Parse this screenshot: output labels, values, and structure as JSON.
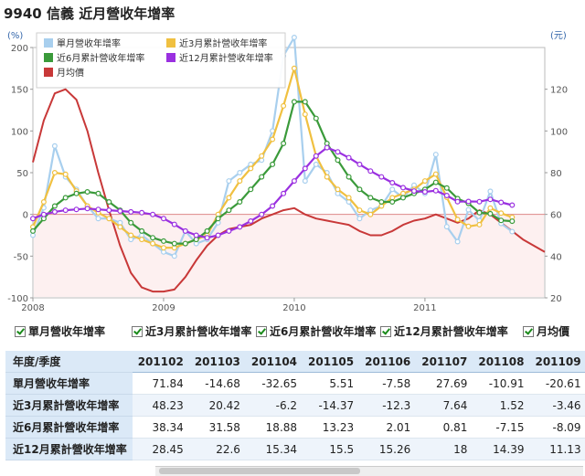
{
  "title": "9940 信義 近月營收年增率",
  "chart_data": {
    "type": "line",
    "left_axis": {
      "unit": "(%)",
      "ticks": [
        "200",
        "150",
        "100",
        "50",
        "0",
        "-50",
        "-100"
      ],
      "ylim": [
        -100,
        200
      ]
    },
    "right_axis": {
      "unit": "(元)",
      "ticks": [
        "120",
        "100",
        "80",
        "60",
        "40",
        "20"
      ],
      "ylim": [
        20,
        140
      ]
    },
    "x_axis": {
      "labels": [
        "2008",
        "2009",
        "2010",
        "2011"
      ],
      "xlim": [
        2008.0,
        2011.917
      ]
    },
    "grid": false,
    "legend_position": "top-left",
    "series": [
      {
        "name": "單月營收年增率",
        "color": "#a8cfee",
        "axis": "left",
        "points": [
          [
            2008.0,
            -25
          ],
          [
            2008.083,
            8
          ],
          [
            2008.167,
            82
          ],
          [
            2008.25,
            45
          ],
          [
            2008.333,
            30
          ],
          [
            2008.417,
            10
          ],
          [
            2008.5,
            -5
          ],
          [
            2008.583,
            -5
          ],
          [
            2008.667,
            -10
          ],
          [
            2008.75,
            -30
          ],
          [
            2008.833,
            -25
          ],
          [
            2008.917,
            -35
          ],
          [
            2009.0,
            -45
          ],
          [
            2009.083,
            -50
          ],
          [
            2009.167,
            -20
          ],
          [
            2009.25,
            -35
          ],
          [
            2009.333,
            -30
          ],
          [
            2009.417,
            -10
          ],
          [
            2009.5,
            40
          ],
          [
            2009.583,
            50
          ],
          [
            2009.667,
            60
          ],
          [
            2009.75,
            65
          ],
          [
            2009.833,
            100
          ],
          [
            2009.917,
            190
          ],
          [
            2010.0,
            212
          ],
          [
            2010.083,
            40
          ],
          [
            2010.167,
            60
          ],
          [
            2010.25,
            50
          ],
          [
            2010.333,
            25
          ],
          [
            2010.417,
            15
          ],
          [
            2010.5,
            -5
          ],
          [
            2010.583,
            5
          ],
          [
            2010.667,
            10
          ],
          [
            2010.75,
            30
          ],
          [
            2010.833,
            20
          ],
          [
            2010.917,
            35
          ],
          [
            2011.0,
            25
          ],
          [
            2011.083,
            71.84
          ],
          [
            2011.167,
            -14.68
          ],
          [
            2011.25,
            -32.65
          ],
          [
            2011.333,
            5.51
          ],
          [
            2011.417,
            -7.58
          ],
          [
            2011.5,
            27.69
          ],
          [
            2011.583,
            -10.91
          ],
          [
            2011.667,
            -20.61
          ]
        ]
      },
      {
        "name": "近3月累計營收年增率",
        "color": "#f0c040",
        "axis": "left",
        "points": [
          [
            2008.0,
            -15
          ],
          [
            2008.083,
            15
          ],
          [
            2008.167,
            50
          ],
          [
            2008.25,
            48
          ],
          [
            2008.333,
            28
          ],
          [
            2008.417,
            10
          ],
          [
            2008.5,
            2
          ],
          [
            2008.583,
            -5
          ],
          [
            2008.667,
            -15
          ],
          [
            2008.75,
            -25
          ],
          [
            2008.833,
            -30
          ],
          [
            2008.917,
            -35
          ],
          [
            2009.0,
            -40
          ],
          [
            2009.083,
            -40
          ],
          [
            2009.167,
            -35
          ],
          [
            2009.25,
            -30
          ],
          [
            2009.333,
            -25
          ],
          [
            2009.417,
            0
          ],
          [
            2009.5,
            20
          ],
          [
            2009.583,
            40
          ],
          [
            2009.667,
            55
          ],
          [
            2009.75,
            70
          ],
          [
            2009.833,
            90
          ],
          [
            2009.917,
            130
          ],
          [
            2010.0,
            175
          ],
          [
            2010.083,
            120
          ],
          [
            2010.167,
            70
          ],
          [
            2010.25,
            45
          ],
          [
            2010.333,
            30
          ],
          [
            2010.417,
            20
          ],
          [
            2010.5,
            5
          ],
          [
            2010.583,
            0
          ],
          [
            2010.667,
            10
          ],
          [
            2010.75,
            20
          ],
          [
            2010.833,
            25
          ],
          [
            2010.917,
            30
          ],
          [
            2011.0,
            40
          ],
          [
            2011.083,
            48.23
          ],
          [
            2011.167,
            20.42
          ],
          [
            2011.25,
            -6.2
          ],
          [
            2011.333,
            -14.37
          ],
          [
            2011.417,
            -12.3
          ],
          [
            2011.5,
            7.64
          ],
          [
            2011.583,
            1.52
          ],
          [
            2011.667,
            -3.46
          ]
        ]
      },
      {
        "name": "近6月累計營收年增率",
        "color": "#3a9a3a",
        "axis": "left",
        "points": [
          [
            2008.0,
            -20
          ],
          [
            2008.083,
            -5
          ],
          [
            2008.167,
            10
          ],
          [
            2008.25,
            20
          ],
          [
            2008.333,
            25
          ],
          [
            2008.417,
            27
          ],
          [
            2008.5,
            25
          ],
          [
            2008.583,
            15
          ],
          [
            2008.667,
            5
          ],
          [
            2008.75,
            -10
          ],
          [
            2008.833,
            -20
          ],
          [
            2008.917,
            -28
          ],
          [
            2009.0,
            -32
          ],
          [
            2009.083,
            -35
          ],
          [
            2009.167,
            -35
          ],
          [
            2009.25,
            -30
          ],
          [
            2009.333,
            -20
          ],
          [
            2009.417,
            -5
          ],
          [
            2009.5,
            5
          ],
          [
            2009.583,
            15
          ],
          [
            2009.667,
            30
          ],
          [
            2009.75,
            45
          ],
          [
            2009.833,
            60
          ],
          [
            2009.917,
            85
          ],
          [
            2010.0,
            135
          ],
          [
            2010.083,
            135
          ],
          [
            2010.167,
            115
          ],
          [
            2010.25,
            85
          ],
          [
            2010.333,
            65
          ],
          [
            2010.417,
            45
          ],
          [
            2010.5,
            30
          ],
          [
            2010.583,
            20
          ],
          [
            2010.667,
            15
          ],
          [
            2010.75,
            15
          ],
          [
            2010.833,
            20
          ],
          [
            2010.917,
            25
          ],
          [
            2011.0,
            30
          ],
          [
            2011.083,
            38.34
          ],
          [
            2011.167,
            31.58
          ],
          [
            2011.25,
            18.88
          ],
          [
            2011.333,
            13.23
          ],
          [
            2011.417,
            2.01
          ],
          [
            2011.5,
            0.81
          ],
          [
            2011.583,
            -7.15
          ],
          [
            2011.667,
            -8.09
          ]
        ]
      },
      {
        "name": "近12月累計營收年增率",
        "color": "#9a30e0",
        "axis": "left",
        "points": [
          [
            2008.0,
            -5
          ],
          [
            2008.083,
            0
          ],
          [
            2008.167,
            3
          ],
          [
            2008.25,
            5
          ],
          [
            2008.333,
            6
          ],
          [
            2008.417,
            7
          ],
          [
            2008.5,
            6
          ],
          [
            2008.583,
            5
          ],
          [
            2008.667,
            4
          ],
          [
            2008.75,
            3
          ],
          [
            2008.833,
            2
          ],
          [
            2008.917,
            0
          ],
          [
            2009.0,
            -5
          ],
          [
            2009.083,
            -12
          ],
          [
            2009.167,
            -20
          ],
          [
            2009.25,
            -25
          ],
          [
            2009.333,
            -28
          ],
          [
            2009.417,
            -25
          ],
          [
            2009.5,
            -20
          ],
          [
            2009.583,
            -15
          ],
          [
            2009.667,
            -8
          ],
          [
            2009.75,
            0
          ],
          [
            2009.833,
            10
          ],
          [
            2009.917,
            25
          ],
          [
            2010.0,
            40
          ],
          [
            2010.083,
            55
          ],
          [
            2010.167,
            70
          ],
          [
            2010.25,
            80
          ],
          [
            2010.333,
            75
          ],
          [
            2010.417,
            68
          ],
          [
            2010.5,
            60
          ],
          [
            2010.583,
            52
          ],
          [
            2010.667,
            45
          ],
          [
            2010.75,
            38
          ],
          [
            2010.833,
            32
          ],
          [
            2010.917,
            28
          ],
          [
            2011.0,
            27
          ],
          [
            2011.083,
            28.45
          ],
          [
            2011.167,
            22.6
          ],
          [
            2011.25,
            15.34
          ],
          [
            2011.333,
            15.5
          ],
          [
            2011.417,
            15.26
          ],
          [
            2011.5,
            18
          ],
          [
            2011.583,
            14.39
          ],
          [
            2011.667,
            11.13
          ]
        ]
      },
      {
        "name": "月均價",
        "color": "#c83838",
        "axis": "right",
        "points": [
          [
            2008.0,
            85
          ],
          [
            2008.083,
            105
          ],
          [
            2008.167,
            118
          ],
          [
            2008.25,
            120
          ],
          [
            2008.333,
            115
          ],
          [
            2008.417,
            100
          ],
          [
            2008.5,
            80
          ],
          [
            2008.583,
            62
          ],
          [
            2008.667,
            45
          ],
          [
            2008.75,
            32
          ],
          [
            2008.833,
            25
          ],
          [
            2008.917,
            23
          ],
          [
            2009.0,
            23
          ],
          [
            2009.083,
            24
          ],
          [
            2009.167,
            30
          ],
          [
            2009.25,
            38
          ],
          [
            2009.333,
            45
          ],
          [
            2009.417,
            50
          ],
          [
            2009.5,
            53
          ],
          [
            2009.583,
            54
          ],
          [
            2009.667,
            55
          ],
          [
            2009.75,
            58
          ],
          [
            2009.833,
            60
          ],
          [
            2009.917,
            62
          ],
          [
            2010.0,
            63
          ],
          [
            2010.083,
            60
          ],
          [
            2010.167,
            58
          ],
          [
            2010.25,
            57
          ],
          [
            2010.333,
            56
          ],
          [
            2010.417,
            55
          ],
          [
            2010.5,
            52
          ],
          [
            2010.583,
            50
          ],
          [
            2010.667,
            50
          ],
          [
            2010.75,
            52
          ],
          [
            2010.833,
            55
          ],
          [
            2010.917,
            57
          ],
          [
            2011.0,
            58
          ],
          [
            2011.083,
            60
          ],
          [
            2011.167,
            58
          ],
          [
            2011.25,
            56
          ],
          [
            2011.333,
            58
          ],
          [
            2011.417,
            62
          ],
          [
            2011.5,
            60
          ],
          [
            2011.583,
            56
          ],
          [
            2011.667,
            52
          ],
          [
            2011.75,
            48
          ],
          [
            2011.917,
            42
          ]
        ]
      }
    ]
  },
  "legend_bar": [
    {
      "label": "單月營收年增率",
      "checked": true
    },
    {
      "label": "近3月累計營收年增率",
      "checked": true
    },
    {
      "label": "近6月累計營收年增率",
      "checked": true
    },
    {
      "label": "近12月累計營收年增率",
      "checked": true
    },
    {
      "label": "月均價",
      "checked": true
    }
  ],
  "table": {
    "corner": "年度/季度",
    "columns": [
      "201102",
      "201103",
      "201104",
      "201105",
      "201106",
      "201107",
      "201108",
      "201109"
    ],
    "rows": [
      {
        "label": "單月營收年增率",
        "values": [
          "71.84",
          "-14.68",
          "-32.65",
          "5.51",
          "-7.58",
          "27.69",
          "-10.91",
          "-20.61"
        ]
      },
      {
        "label": "近3月累計營收年增率",
        "values": [
          "48.23",
          "20.42",
          "-6.2",
          "-14.37",
          "-12.3",
          "7.64",
          "1.52",
          "-3.46"
        ]
      },
      {
        "label": "近6月累計營收年增率",
        "values": [
          "38.34",
          "31.58",
          "18.88",
          "13.23",
          "2.01",
          "0.81",
          "-7.15",
          "-8.09"
        ]
      },
      {
        "label": "近12月累計營收年增率",
        "values": [
          "28.45",
          "22.6",
          "15.34",
          "15.5",
          "15.26",
          "18",
          "14.39",
          "11.13"
        ]
      }
    ]
  }
}
